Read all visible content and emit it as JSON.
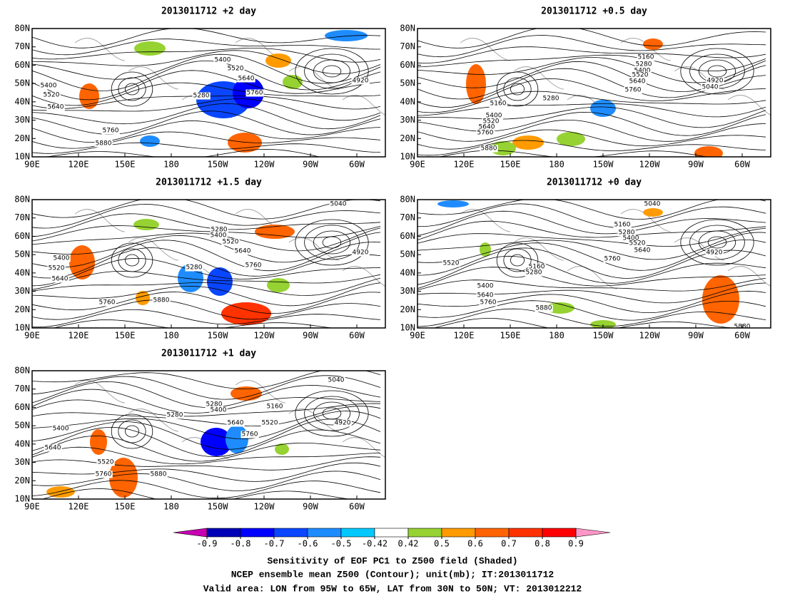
{
  "panels": [
    {
      "title": "2013011712 +2 day",
      "contour_labels": [
        5400,
        5520,
        5640,
        5760,
        5880,
        5280,
        5400,
        5520,
        5640,
        5760,
        4920
      ]
    },
    {
      "title": "2013011712 +0.5 day",
      "contour_labels": [
        5160,
        5280,
        5400,
        5520,
        5640,
        5760,
        4920,
        5040,
        5280,
        5160,
        5400,
        5520,
        5640,
        5760,
        5880
      ]
    },
    {
      "title": "2013011712 +1.5 day",
      "contour_labels": [
        5040,
        5280,
        5400,
        5520,
        5640,
        5760,
        4920,
        5400,
        5520,
        5640,
        5760,
        5880,
        5280
      ]
    },
    {
      "title": "2013011712 +0 day",
      "contour_labels": [
        5040,
        5160,
        5280,
        5400,
        5520,
        5640,
        5760,
        4920,
        5520,
        5160,
        5280,
        5400,
        5640,
        5760,
        5880,
        5880
      ]
    },
    {
      "title": "2013011712 +1 day",
      "contour_labels": [
        5040,
        5280,
        5280,
        5400,
        5160,
        5640,
        5520,
        5760,
        4920,
        5400,
        5640,
        5520,
        5760,
        5880
      ]
    }
  ],
  "lat_labels": [
    "80N",
    "70N",
    "60N",
    "50N",
    "40N",
    "30N",
    "20N",
    "10N"
  ],
  "lon_labels": [
    "90E",
    "120E",
    "150E",
    "180",
    "150W",
    "120W",
    "90W",
    "60W"
  ],
  "colorbar": {
    "ticks": [
      -0.9,
      -0.8,
      -0.7,
      -0.6,
      -0.5,
      -0.42,
      0.42,
      0.5,
      0.6,
      0.7,
      0.8,
      0.9
    ],
    "colors": [
      "#0000b4",
      "#0000ff",
      "#0a46ff",
      "#1e8cff",
      "#00c8ff",
      "#ffffff",
      "#96d232",
      "#ff9b00",
      "#ff6400",
      "#ff3200",
      "#ff0000"
    ],
    "low_color": "#c800b4",
    "high_color": "#ff96c8"
  },
  "caption": [
    "Sensitivity of EOF PC1 to Z500 field (Shaded)",
    "NCEP ensemble mean Z500 (Contour); unit(mb); IT:2013011712",
    "Valid area: LON from 95W to 65W, LAT from 30N to 50N; VT: 2013012212"
  ]
}
